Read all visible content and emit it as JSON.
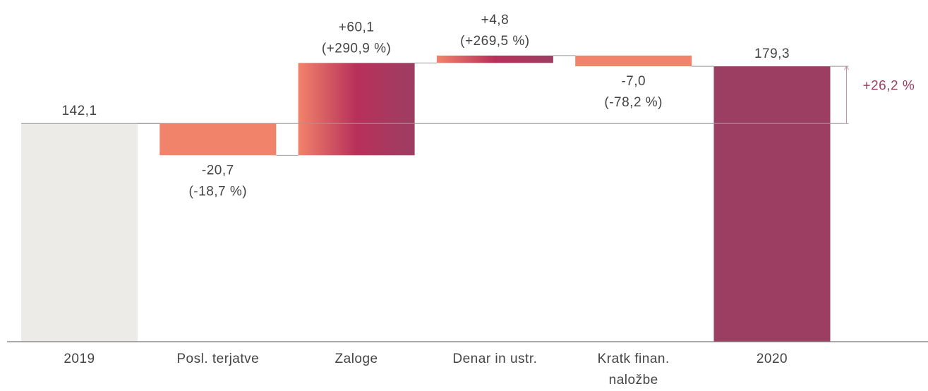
{
  "chart_data": {
    "type": "waterfall",
    "categories": [
      "2019",
      "Posl. terjatve",
      "Zaloge",
      "Denar in ustr.",
      "Kratk finan. naložbe",
      "2020"
    ],
    "values": [
      142.1,
      -20.7,
      60.1,
      4.8,
      -7.0,
      179.3
    ],
    "value_labels": [
      "142,1",
      "-20,7",
      "+60,1",
      "+4,8",
      "-7,0",
      "179,3"
    ],
    "change_labels": [
      null,
      "(-18,7 %)",
      "(+290,9 %)",
      "(+269,5 %)",
      "(-78,2 %)",
      null
    ],
    "totals": [
      true,
      false,
      false,
      false,
      false,
      true
    ],
    "start_color": "#edebe8",
    "end_color": "#9c3e62",
    "decrease_color": "#f2836b",
    "increase_colors": [
      "#f2836b",
      "#b8305a",
      "#9c3e62"
    ],
    "annotation": "+26,2 %",
    "annotation_color": "#9c3e62",
    "ylim": [
      0,
      200
    ]
  }
}
